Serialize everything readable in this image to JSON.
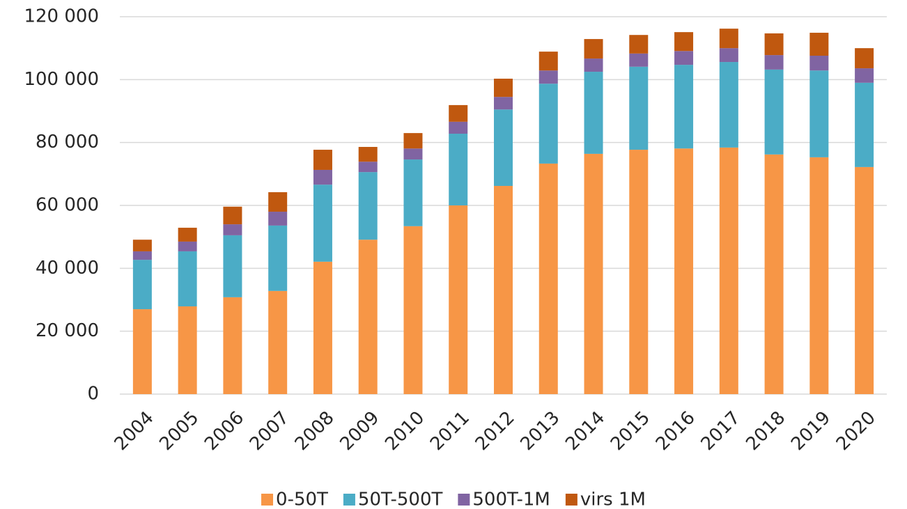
{
  "chart_data": {
    "type": "stacked_bar",
    "categories": [
      "2004",
      "2005",
      "2006",
      "2007",
      "2008",
      "2009",
      "2010",
      "2011",
      "2012",
      "2013",
      "2014",
      "2015",
      "2016",
      "2017",
      "2018",
      "2019",
      "2020"
    ],
    "series": [
      {
        "name": "0-50T",
        "color": "#f79646",
        "values": [
          27000,
          27900,
          30800,
          32800,
          42100,
          49100,
          53400,
          60000,
          66200,
          73300,
          76400,
          77700,
          78100,
          78400,
          76200,
          75300,
          72200
        ]
      },
      {
        "name": "50T-500T",
        "color": "#4bacc6",
        "values": [
          15700,
          17500,
          19700,
          20800,
          24500,
          21500,
          21200,
          22800,
          24300,
          25400,
          26100,
          26400,
          26600,
          27200,
          27000,
          27600,
          26800
        ]
      },
      {
        "name": "500T-1M",
        "color": "#8064a2",
        "values": [
          2700,
          3100,
          3500,
          4400,
          4700,
          3300,
          3500,
          3800,
          4000,
          4200,
          4200,
          4200,
          4400,
          4400,
          4600,
          4700,
          4600
        ]
      },
      {
        "name": "virs 1M",
        "color": "#c0580f",
        "values": [
          3700,
          4400,
          5600,
          6200,
          6400,
          4700,
          4900,
          5300,
          5800,
          6000,
          6200,
          5900,
          6000,
          6200,
          6900,
          7300,
          6400
        ]
      }
    ],
    "ylim": [
      0,
      120000
    ],
    "yticks": [
      0,
      {
        "value": 20000,
        "label": "20 000"
      },
      {
        "value": 40000,
        "label": "40 000"
      },
      {
        "value": 60000,
        "label": "60 000"
      },
      {
        "value": 80000,
        "label": "80 000"
      },
      {
        "value": 100000,
        "label": "100 000"
      },
      {
        "value": 120000,
        "label": "120 000"
      }
    ],
    "grid": true,
    "legend": "bottom"
  }
}
